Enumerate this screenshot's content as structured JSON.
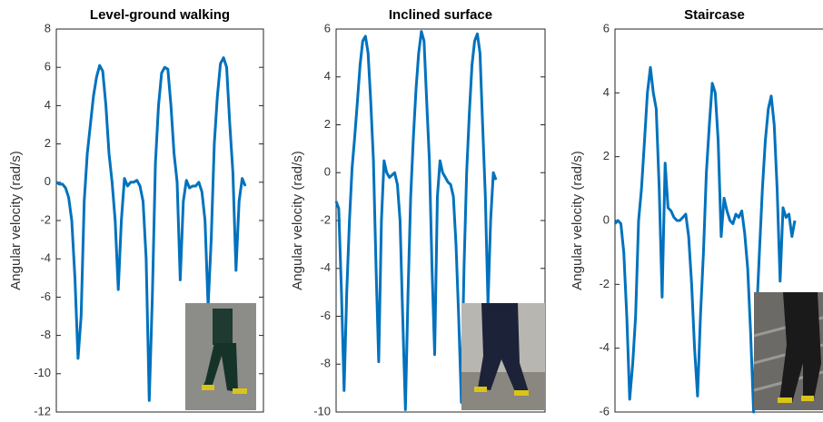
{
  "chart_data": [
    {
      "type": "line",
      "title": "Level-ground walking",
      "y_label": "Angular velocity (rad/s)",
      "ylim": [
        -12,
        8
      ],
      "yticks": [
        -12,
        -10,
        -8,
        -6,
        -4,
        -2,
        0,
        2,
        4,
        6,
        8
      ],
      "grid": false,
      "series": [
        {
          "color": "#0072bd",
          "values": [
            0,
            -0.1,
            -0.1,
            -0.3,
            -0.8,
            -2,
            -5,
            -9.2,
            -7,
            -1,
            1.5,
            3,
            4.5,
            5.5,
            6.1,
            5.8,
            4,
            1.5,
            0,
            -2,
            -5.6,
            -2,
            0.2,
            -0.2,
            0,
            0,
            0.1,
            -0.2,
            -1,
            -4,
            -11.4,
            -6,
            1,
            4,
            5.7,
            6,
            5.9,
            4,
            1.5,
            0,
            -5.1,
            -1,
            0.1,
            -0.3,
            -0.2,
            -0.2,
            0,
            -0.5,
            -2,
            -6.5,
            -3,
            2,
            4.5,
            6.2,
            6.5,
            6,
            3,
            0.5,
            -4.6,
            -1,
            0.2,
            -0.2
          ]
        }
      ]
    },
    {
      "type": "line",
      "title": "Inclined surface",
      "y_label": "Angular velocity (rad/s)",
      "ylim": [
        -10,
        6
      ],
      "yticks": [
        -10,
        -8,
        -6,
        -4,
        -2,
        0,
        2,
        4,
        6
      ],
      "grid": false,
      "series": [
        {
          "color": "#0072bd",
          "values": [
            -1.2,
            -1.5,
            -5,
            -9.1,
            -5,
            -2,
            0.2,
            1.5,
            3,
            4.5,
            5.5,
            5.7,
            5,
            3,
            0.5,
            -4,
            -7.9,
            -2,
            0.5,
            0,
            -0.2,
            -0.1,
            0,
            -0.5,
            -2,
            -6,
            -9.9,
            -5,
            -1,
            1.5,
            3.5,
            5,
            5.9,
            5.5,
            3,
            0.5,
            -4,
            -7.6,
            -1,
            0.5,
            0,
            -0.2,
            -0.4,
            -0.5,
            -1,
            -3,
            -6,
            -9.6,
            -4,
            0,
            2.5,
            4.5,
            5.5,
            5.8,
            5,
            2,
            -1,
            -5.5,
            -2,
            0,
            -0.3
          ]
        }
      ]
    },
    {
      "type": "line",
      "title": "Staircase",
      "y_label": "Angular velocity (rad/s)",
      "ylim": [
        -6,
        6
      ],
      "yticks": [
        -6,
        -4,
        -2,
        0,
        2,
        4,
        6
      ],
      "grid": false,
      "series": [
        {
          "color": "#0072bd",
          "values": [
            -0.1,
            0,
            -0.1,
            -1,
            -3,
            -5.6,
            -4.5,
            -3,
            0,
            1,
            2.5,
            4,
            4.8,
            4,
            3.5,
            1,
            -2.4,
            1.8,
            0.4,
            0.3,
            0.1,
            0,
            0,
            0.1,
            0.2,
            -0.5,
            -2,
            -4,
            -5.5,
            -3,
            -1,
            1.5,
            3,
            4.3,
            4,
            2.5,
            -0.5,
            0.7,
            0.3,
            0,
            -0.1,
            0.2,
            0.1,
            0.3,
            -0.4,
            -1.5,
            -3.5,
            -6,
            -3,
            -1,
            1,
            2.5,
            3.5,
            3.9,
            3,
            1,
            -1.9,
            0.4,
            0.1,
            0.2,
            -0.5,
            0
          ]
        }
      ]
    }
  ]
}
